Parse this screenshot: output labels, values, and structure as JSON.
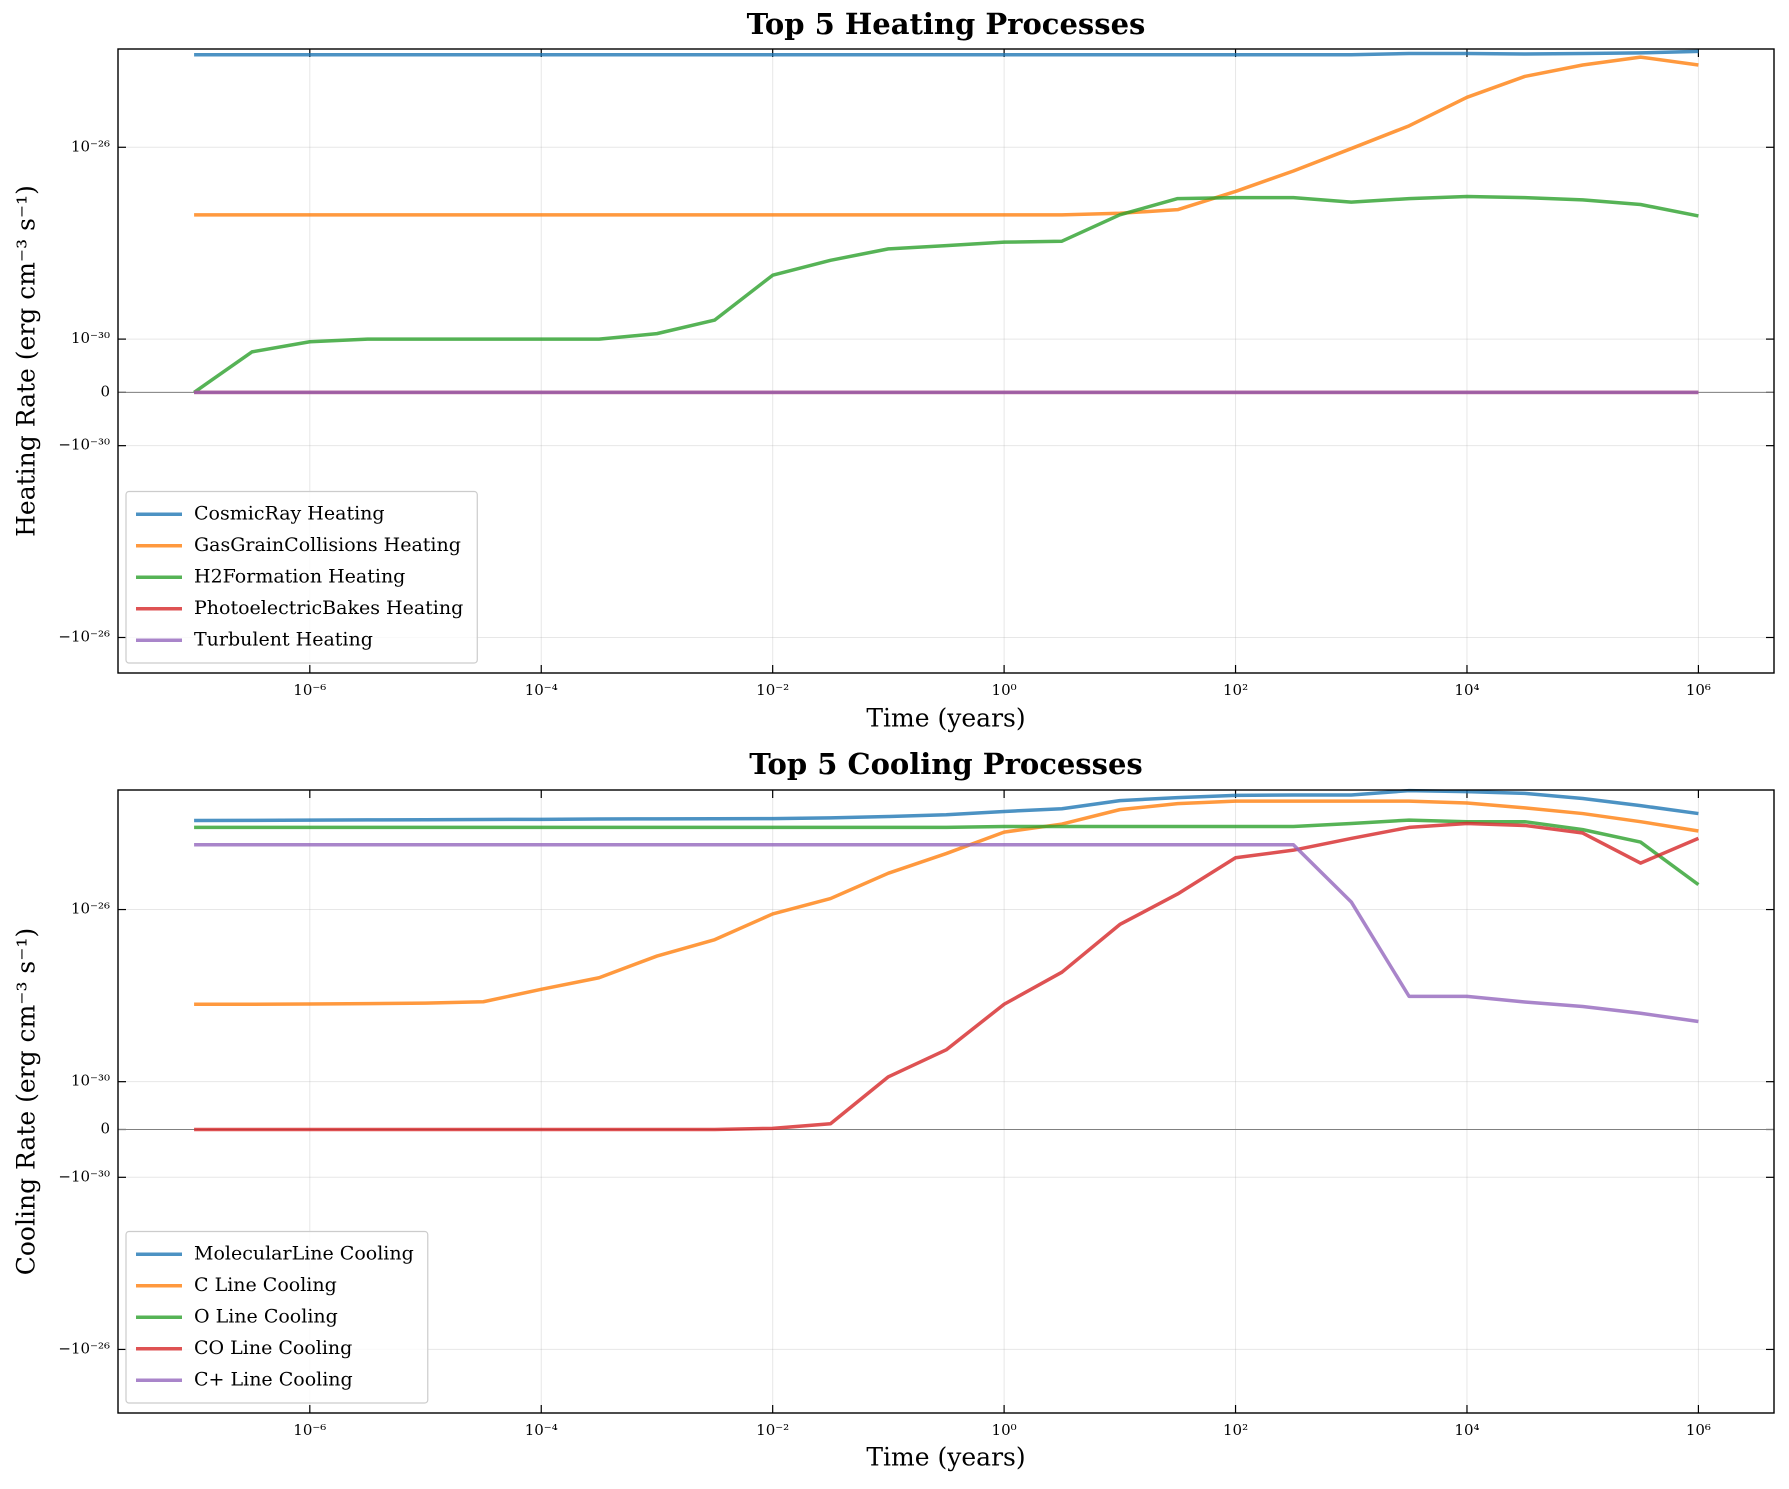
{
  "chart_data": [
    {
      "type": "line",
      "title": "Top 5 Heating Processes",
      "xlabel": "Time (years)",
      "ylabel": "Heating Rate (erg cm⁻³ s⁻¹)",
      "xscale": "log",
      "yscale": "symlog",
      "linthresh": 1e-30,
      "grid": true,
      "legend": "lower left",
      "xlim": [
        2.2e-08,
        4500000.0
      ],
      "ylim": [
        -5.5e-26,
        1.12e-24
      ],
      "xticks": [
        {
          "value": 1e-06,
          "label": "10⁻⁶"
        },
        {
          "value": 0.0001,
          "label": "10⁻⁴"
        },
        {
          "value": 0.01,
          "label": "10⁻²"
        },
        {
          "value": 1,
          "label": "10⁰"
        },
        {
          "value": 100,
          "label": "10²"
        },
        {
          "value": 10000.0,
          "label": "10⁴"
        },
        {
          "value": 1000000.0,
          "label": "10⁶"
        }
      ],
      "yticks": [
        {
          "value": -1e-26,
          "label": "−10⁻²⁶"
        },
        {
          "value": -1e-30,
          "label": "−10⁻³⁰"
        },
        0,
        {
          "value": 1e-30,
          "label": "10⁻³⁰"
        },
        {
          "value": 1e-26,
          "label": "10⁻²⁶"
        }
      ],
      "x": [
        1e-07,
        3.16e-07,
        1e-06,
        3.16e-06,
        1e-05,
        3.16e-05,
        0.0001,
        0.000316,
        0.001,
        0.00316,
        0.01,
        0.0316,
        0.1,
        0.316,
        1,
        3.16,
        10,
        31.6,
        100,
        316,
        1000,
        3160,
        10000.0,
        31600.0,
        100000.0,
        316000.0,
        1000000.0
      ],
      "series": [
        {
          "name": "CosmicRay Heating",
          "color": "#1f77b4",
          "values": [
            8.5e-25,
            8.5e-25,
            8.5e-25,
            8.5e-25,
            8.5e-25,
            8.5e-25,
            8.5e-25,
            8.5e-25,
            8.5e-25,
            8.5e-25,
            8.5e-25,
            8.5e-25,
            8.5e-25,
            8.5e-25,
            8.5e-25,
            8.5e-25,
            8.5e-25,
            8.5e-25,
            8.5e-25,
            8.5e-25,
            8.5e-25,
            9e-25,
            9e-25,
            8.8e-25,
            9e-25,
            9.3e-25,
            1e-24
          ]
        },
        {
          "name": "GasGrainCollisions Heating",
          "color": "#ff7f0e",
          "values": [
            3.9e-28,
            3.9e-28,
            3.9e-28,
            3.9e-28,
            3.9e-28,
            3.9e-28,
            3.9e-28,
            3.9e-28,
            3.9e-28,
            3.9e-28,
            3.9e-28,
            3.9e-28,
            3.9e-28,
            3.9e-28,
            3.9e-28,
            3.9e-28,
            4.2e-28,
            5e-28,
            1.2e-27,
            3.2e-27,
            9.4e-27,
            2.8e-26,
            1.1e-25,
            3e-25,
            5.2e-25,
            7.6e-25,
            5.2e-25
          ]
        },
        {
          "name": "H2Formation Heating",
          "color": "#2ca02c",
          "values": [
            0,
            7.6e-31,
            9.5e-31,
            1e-30,
            1e-30,
            1e-30,
            1e-30,
            1e-30,
            1.3e-30,
            2.5e-30,
            2.15e-29,
            4.4e-29,
            7.6e-29,
            8.9e-29,
            1.05e-28,
            1.1e-28,
            3.9e-28,
            8.5e-28,
            8.9e-28,
            8.9e-28,
            7.2e-28,
            8.5e-28,
            9.4e-28,
            8.9e-28,
            8e-28,
            6.4e-28,
            3.7e-28
          ]
        },
        {
          "name": "PhotoelectricBakes Heating",
          "color": "#d62728",
          "values": [
            0,
            0,
            0,
            0,
            0,
            0,
            0,
            0,
            0,
            0,
            0,
            0,
            0,
            0,
            0,
            0,
            0,
            0,
            0,
            0,
            0,
            0,
            0,
            0,
            0,
            0,
            0
          ]
        },
        {
          "name": "Turbulent Heating",
          "color": "#9467bd",
          "values": [
            0,
            0,
            0,
            0,
            0,
            0,
            0,
            0,
            0,
            0,
            0,
            0,
            0,
            0,
            0,
            0,
            0,
            0,
            0,
            0,
            0,
            0,
            0,
            0,
            0,
            0,
            0
          ]
        }
      ]
    },
    {
      "type": "line",
      "title": "Top 5 Cooling Processes",
      "xlabel": "Time (years)",
      "ylabel": "Cooling Rate (erg cm⁻³ s⁻¹)",
      "xscale": "log",
      "yscale": "symlog",
      "linthresh": 1e-30,
      "grid": true,
      "legend": "lower left",
      "xlim": [
        2.2e-08,
        4500000.0
      ],
      "ylim": [
        -3e-25,
        6e-24
      ],
      "xticks": [
        {
          "value": 1e-06,
          "label": "10⁻⁶"
        },
        {
          "value": 0.0001,
          "label": "10⁻⁴"
        },
        {
          "value": 0.01,
          "label": "10⁻²"
        },
        {
          "value": 1,
          "label": "10⁰"
        },
        {
          "value": 100,
          "label": "10²"
        },
        {
          "value": 10000.0,
          "label": "10⁴"
        },
        {
          "value": 1000000.0,
          "label": "10⁶"
        }
      ],
      "yticks": [
        {
          "value": -1e-26,
          "label": "−10⁻²⁶"
        },
        {
          "value": -1e-30,
          "label": "−10⁻³⁰"
        },
        0,
        {
          "value": 1e-30,
          "label": "10⁻³⁰"
        },
        {
          "value": 1e-26,
          "label": "10⁻²⁶"
        }
      ],
      "x": [
        1e-07,
        3.16e-07,
        1e-06,
        3.16e-06,
        1e-05,
        3.16e-05,
        0.0001,
        0.000316,
        0.001,
        0.00316,
        0.01,
        0.0316,
        0.1,
        0.316,
        1,
        3.16,
        10,
        31.6,
        100,
        316,
        1000,
        3160,
        10000.0,
        31600.0,
        100000.0,
        316000.0,
        1000000.0
      ],
      "series": [
        {
          "name": "MolecularLine Cooling",
          "color": "#1f77b4",
          "values": [
            1.17e-24,
            1.18e-24,
            1.2e-24,
            1.21e-24,
            1.22e-24,
            1.24e-24,
            1.25e-24,
            1.27e-24,
            1.28e-24,
            1.29e-24,
            1.3e-24,
            1.35e-24,
            1.45e-24,
            1.6e-24,
            1.9e-24,
            2.2e-24,
            3.4e-24,
            4e-24,
            4.5e-24,
            4.6e-24,
            4.6e-24,
            5.8e-24,
            5.5e-24,
            5e-24,
            3.8e-24,
            2.6e-24,
            1.7e-24
          ]
        },
        {
          "name": "C Line Cooling",
          "color": "#ff7f0e",
          "values": [
            6.3e-29,
            6.3e-29,
            6.4e-29,
            6.5e-29,
            6.7e-29,
            7.2e-29,
            1.4e-28,
            2.6e-28,
            8.3e-28,
            2e-27,
            7.9e-27,
            1.8e-26,
            7e-26,
            2e-25,
            6.3e-25,
            9.7e-25,
            2.1e-24,
            2.9e-24,
            3.3e-24,
            3.3e-24,
            3.3e-24,
            3.3e-24,
            3e-24,
            2.3e-24,
            1.7e-24,
            1.1e-24,
            6.7e-25
          ]
        },
        {
          "name": "O Line Cooling",
          "color": "#2ca02c",
          "values": [
            8.1e-25,
            8.1e-25,
            8.1e-25,
            8.1e-25,
            8.1e-25,
            8.1e-25,
            8.1e-25,
            8.1e-25,
            8.1e-25,
            8.1e-25,
            8.1e-25,
            8.1e-25,
            8.1e-25,
            8.1e-25,
            8.5e-25,
            8.5e-25,
            8.5e-25,
            8.5e-25,
            8.5e-25,
            8.5e-25,
            1e-24,
            1.2e-24,
            1.1e-24,
            1.1e-24,
            7.2e-25,
            3.7e-25,
            3.8e-26
          ]
        },
        {
          "name": "CO Line Cooling",
          "color": "#d62728",
          "values": [
            0,
            0,
            0,
            0,
            0,
            0,
            0,
            0,
            0,
            0,
            2.4e-32,
            1.2e-31,
            1.3e-30,
            5.5e-30,
            6.3e-29,
            3.5e-28,
            4.5e-27,
            2.3e-26,
            1.6e-25,
            2.4e-25,
            4.5e-25,
            8.1e-25,
            1e-24,
            9e-25,
            6e-25,
            1.2e-25,
            4.5e-25
          ]
        },
        {
          "name": "C+ Line Cooling",
          "color": "#9467bd",
          "values": [
            3.2e-25,
            3.2e-25,
            3.2e-25,
            3.2e-25,
            3.2e-25,
            3.2e-25,
            3.2e-25,
            3.2e-25,
            3.2e-25,
            3.2e-25,
            3.2e-25,
            3.2e-25,
            3.2e-25,
            3.2e-25,
            3.2e-25,
            3.2e-25,
            3.2e-25,
            3.2e-25,
            3.2e-25,
            3.2e-25,
            1.5e-26,
            9.6e-29,
            9.6e-29,
            7.1e-29,
            5.6e-29,
            3.9e-29,
            2.5e-29
          ]
        }
      ]
    }
  ]
}
